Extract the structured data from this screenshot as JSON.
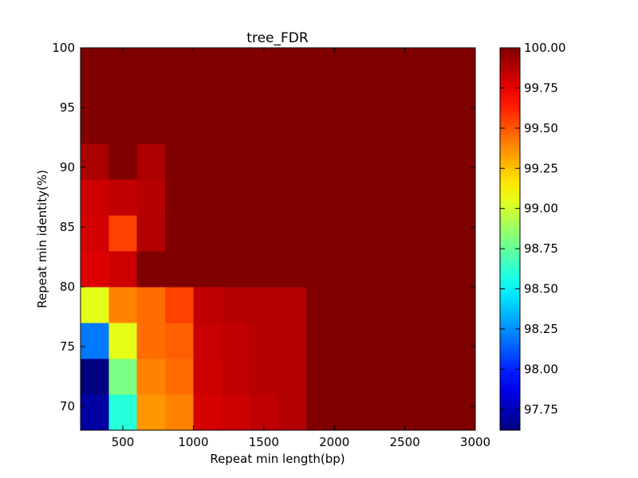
{
  "chart_data": {
    "type": "heatmap",
    "title": "tree_FDR",
    "xlabel": "Repeat min length(bp)",
    "ylabel": "Repeat min identity(%)",
    "x_edges": [
      200,
      400,
      600,
      800,
      1000,
      1200,
      1400,
      1600,
      1800,
      2000,
      2200,
      2400,
      2600,
      2800,
      3000
    ],
    "y_edges": [
      68,
      71,
      74,
      77,
      80,
      83,
      86,
      89,
      92,
      95,
      98,
      100
    ],
    "xlim": [
      200,
      3000
    ],
    "ylim": [
      68,
      100
    ],
    "xticks": [
      500,
      1000,
      1500,
      2000,
      2500,
      3000
    ],
    "xtick_labels": [
      "500",
      "1000",
      "1500",
      "2000",
      "2500",
      "3000"
    ],
    "yticks": [
      70,
      75,
      80,
      85,
      90,
      95,
      100
    ],
    "ytick_labels": [
      "70",
      "75",
      "80",
      "85",
      "90",
      "95",
      "100"
    ],
    "colorbar": {
      "min": 97.62,
      "max": 100.0,
      "colormap": "jet",
      "ticks": [
        97.75,
        98.0,
        98.25,
        98.5,
        98.75,
        99.0,
        99.25,
        99.5,
        99.75,
        100.0
      ],
      "tick_labels": [
        "97.75",
        "98.00",
        "98.25",
        "98.50",
        "98.75",
        "99.00",
        "99.25",
        "99.50",
        "99.75",
        "100.00"
      ]
    },
    "grid": false,
    "values": [
      [
        97.7,
        98.6,
        99.35,
        99.4,
        99.8,
        99.82,
        99.85,
        99.88,
        100,
        100,
        100,
        100,
        100,
        100
      ],
      [
        97.62,
        98.8,
        99.4,
        99.45,
        99.82,
        99.85,
        99.87,
        99.88,
        100,
        100,
        100,
        100,
        100,
        100
      ],
      [
        98.2,
        99.05,
        99.45,
        99.48,
        99.83,
        99.85,
        99.87,
        99.88,
        100,
        100,
        100,
        100,
        100,
        100
      ],
      [
        99.05,
        99.4,
        99.45,
        99.55,
        99.85,
        99.87,
        99.88,
        99.88,
        100,
        100,
        100,
        100,
        100,
        100
      ],
      [
        99.78,
        99.82,
        100,
        100,
        100,
        100,
        100,
        100,
        100,
        100,
        100,
        100,
        100,
        100
      ],
      [
        99.8,
        99.55,
        99.88,
        100,
        100,
        100,
        100,
        100,
        100,
        100,
        100,
        100,
        100,
        100
      ],
      [
        99.82,
        99.85,
        99.87,
        100,
        100,
        100,
        100,
        100,
        100,
        100,
        100,
        100,
        100,
        100
      ],
      [
        99.9,
        100,
        99.9,
        100,
        100,
        100,
        100,
        100,
        100,
        100,
        100,
        100,
        100,
        100
      ],
      [
        100,
        100,
        100,
        100,
        100,
        100,
        100,
        100,
        100,
        100,
        100,
        100,
        100,
        100
      ],
      [
        100,
        100,
        100,
        100,
        100,
        100,
        100,
        100,
        100,
        100,
        100,
        100,
        100,
        100
      ],
      [
        100,
        100,
        100,
        100,
        100,
        100,
        100,
        100,
        100,
        100,
        100,
        100,
        100,
        100
      ]
    ]
  }
}
